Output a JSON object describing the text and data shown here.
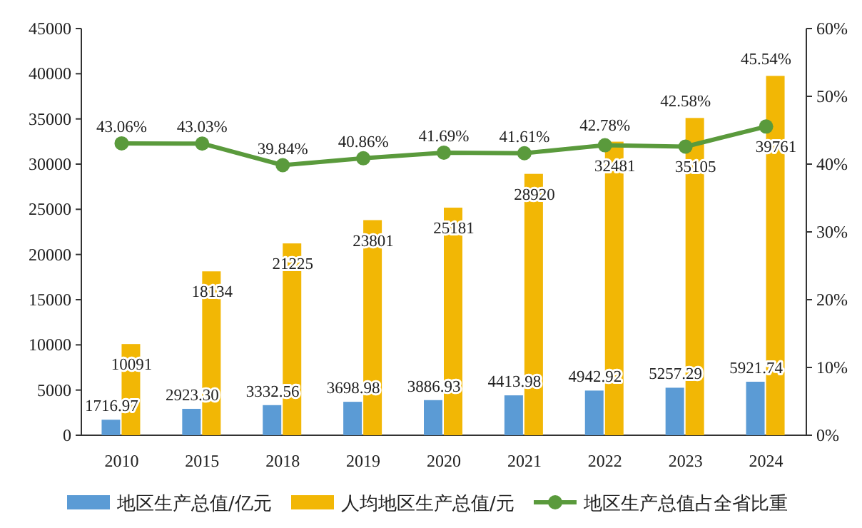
{
  "chart_data": {
    "type": "bar",
    "categories": [
      "2010",
      "2015",
      "2018",
      "2019",
      "2020",
      "2021",
      "2022",
      "2023",
      "2024"
    ],
    "series": [
      {
        "name": "地区生产总值/亿元",
        "color": "#5b9bd5",
        "values": [
          1716.97,
          2923.3,
          3332.56,
          3698.98,
          3886.93,
          4413.98,
          4942.92,
          5257.29,
          5921.74
        ],
        "value_labels": [
          "1716.97",
          "2923.30",
          "3332.56",
          "3698.98",
          "3886.93",
          "4413.98",
          "4942.92",
          "5257.29",
          "5921.74"
        ]
      },
      {
        "name": "人均地区生产总值/元",
        "color": "#f2b705",
        "values": [
          10091,
          18134,
          21225,
          23801,
          25181,
          28920,
          32481,
          35105,
          39761
        ],
        "value_labels": [
          "10091",
          "18134",
          "21225",
          "23801",
          "25181",
          "28920",
          "32481",
          "35105",
          "39761"
        ]
      },
      {
        "name": "地区生产总值占全省比重",
        "type": "line",
        "axis": "y2",
        "color": "#5a9a3c",
        "values": [
          43.06,
          43.03,
          39.84,
          40.86,
          41.69,
          41.61,
          42.78,
          42.58,
          45.54
        ],
        "value_labels": [
          "43.06%",
          "43.03%",
          "39.84%",
          "40.86%",
          "41.69%",
          "41.61%",
          "42.78%",
          "42.58%",
          "45.54%"
        ]
      }
    ],
    "ylim": [
      0,
      45000
    ],
    "yticks": [
      0,
      5000,
      10000,
      15000,
      20000,
      25000,
      30000,
      35000,
      40000,
      45000
    ],
    "y2lim": [
      0,
      60
    ],
    "y2ticks": [
      {
        "value": 0,
        "label": "0%"
      },
      {
        "value": 10,
        "label": "10%"
      },
      {
        "value": 20,
        "label": "20%"
      },
      {
        "value": 30,
        "label": "30%"
      },
      {
        "value": 40,
        "label": "40%"
      },
      {
        "value": 50,
        "label": "50%"
      },
      {
        "value": 60,
        "label": "60%"
      }
    ],
    "marker": "circle",
    "legend": "bottom",
    "grid": false
  }
}
